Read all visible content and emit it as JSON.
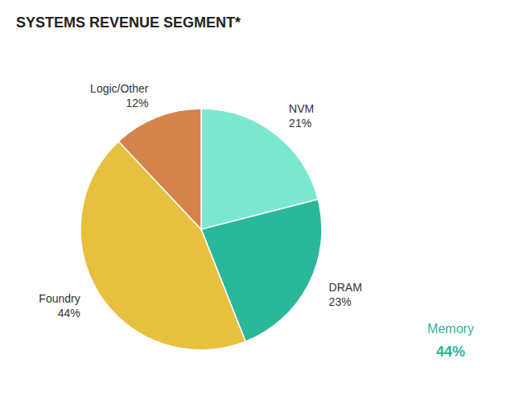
{
  "chart_data": {
    "type": "pie",
    "title": "SYSTEMS REVENUE SEGMENT*",
    "categories": [
      "NVM",
      "DRAM",
      "Foundry",
      "Logic/Other"
    ],
    "values": [
      21,
      23,
      44,
      12
    ],
    "value_labels": [
      "21%",
      "23%",
      "44%",
      "12%"
    ],
    "colors": [
      "#7de8d0",
      "#2ab89a",
      "#e8c040",
      "#d4834a"
    ],
    "data_labels": true,
    "annotations": [
      {
        "text": "Memory",
        "value": 44,
        "label": "44%",
        "color": "#2ab89a"
      }
    ]
  }
}
